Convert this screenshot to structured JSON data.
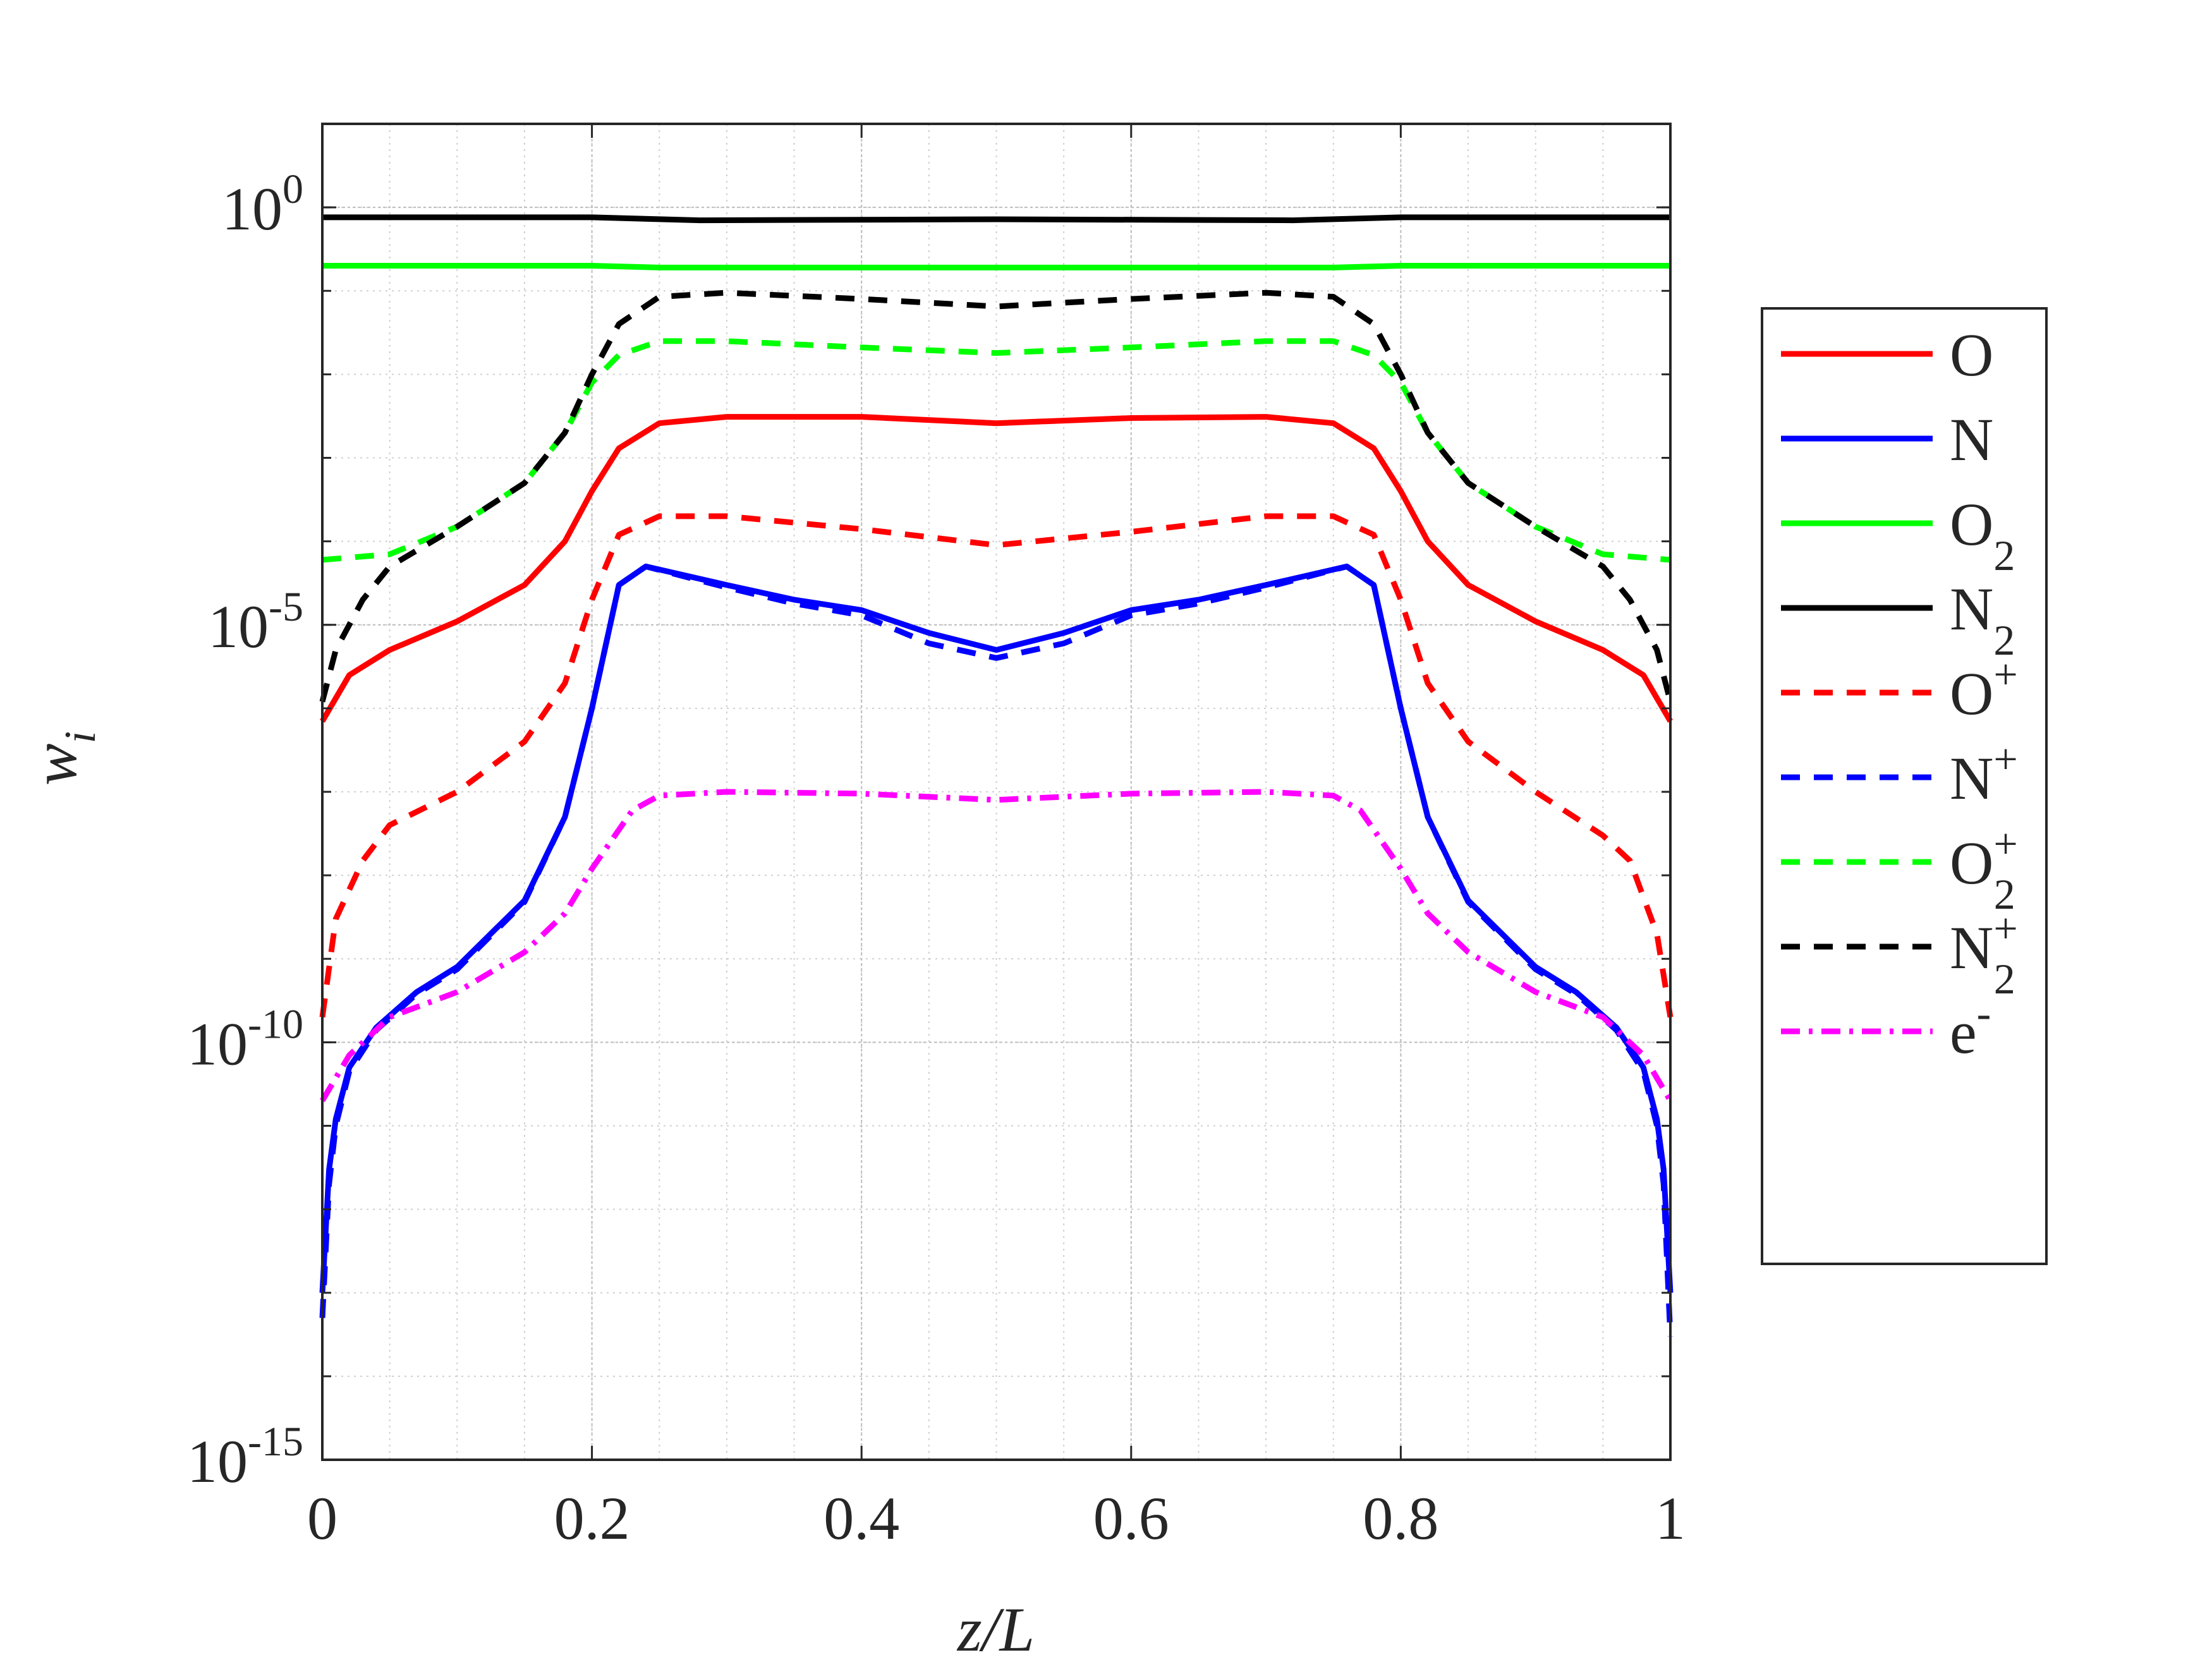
{
  "chart_data": {
    "type": "line",
    "x_axis": {
      "label": "z/L",
      "scale": "linear",
      "range": [
        0,
        1
      ],
      "ticks": [
        {
          "value": 0,
          "label": "0"
        },
        {
          "value": 0.2,
          "label": "0.2"
        },
        {
          "value": 0.4,
          "label": "0.4"
        },
        {
          "value": 0.6,
          "label": "0.6"
        },
        {
          "value": 0.8,
          "label": "0.8"
        },
        {
          "value": 1,
          "label": "1"
        }
      ]
    },
    "y_axis": {
      "label": "w",
      "label_subscript": "i",
      "scale": "log",
      "range": [
        1e-15,
        10
      ],
      "ticks": [
        {
          "value": 1,
          "base": "10",
          "exp": "0"
        },
        {
          "value": 1e-05,
          "base": "10",
          "exp": "-5"
        },
        {
          "value": 1e-10,
          "base": "10",
          "exp": "-10"
        },
        {
          "value": 1e-15,
          "base": "10",
          "exp": "-15"
        }
      ]
    },
    "grid": true,
    "minor_grid": true,
    "legend_position": "outside-right",
    "series": [
      {
        "name": "O",
        "name_sub": "",
        "name_sup": "",
        "color": "#ff0000",
        "style": "solid",
        "points": [
          [
            0,
            7e-07
          ],
          [
            0.02,
            2.5e-06
          ],
          [
            0.05,
            5e-06
          ],
          [
            0.1,
            1.1e-05
          ],
          [
            0.15,
            3e-05
          ],
          [
            0.18,
            0.0001
          ],
          [
            0.2,
            0.0004
          ],
          [
            0.22,
            0.0013
          ],
          [
            0.25,
            0.0026
          ],
          [
            0.3,
            0.0031
          ],
          [
            0.4,
            0.0031
          ],
          [
            0.5,
            0.0026
          ],
          [
            0.6,
            0.003
          ],
          [
            0.7,
            0.0031
          ],
          [
            0.75,
            0.0026
          ],
          [
            0.78,
            0.0013
          ],
          [
            0.8,
            0.0004
          ],
          [
            0.82,
            0.0001
          ],
          [
            0.85,
            3e-05
          ],
          [
            0.9,
            1.1e-05
          ],
          [
            0.95,
            5e-06
          ],
          [
            0.98,
            2.5e-06
          ],
          [
            1,
            7e-07
          ]
        ]
      },
      {
        "name": "N",
        "name_sub": "",
        "name_sup": "",
        "color": "#0000ff",
        "style": "solid",
        "points": [
          [
            0,
            1e-13
          ],
          [
            0.005,
            3e-12
          ],
          [
            0.01,
            1.2e-11
          ],
          [
            0.02,
            5e-11
          ],
          [
            0.04,
            1.5e-10
          ],
          [
            0.07,
            4e-10
          ],
          [
            0.1,
            8e-10
          ],
          [
            0.15,
            5e-09
          ],
          [
            0.18,
            5e-08
          ],
          [
            0.2,
            1e-06
          ],
          [
            0.22,
            3e-05
          ],
          [
            0.24,
            5e-05
          ],
          [
            0.3,
            3e-05
          ],
          [
            0.35,
            2e-05
          ],
          [
            0.4,
            1.5e-05
          ],
          [
            0.45,
            8e-06
          ],
          [
            0.5,
            5e-06
          ],
          [
            0.55,
            8e-06
          ],
          [
            0.6,
            1.5e-05
          ],
          [
            0.65,
            2e-05
          ],
          [
            0.7,
            3e-05
          ],
          [
            0.76,
            5e-05
          ],
          [
            0.78,
            3e-05
          ],
          [
            0.8,
            1e-06
          ],
          [
            0.82,
            5e-08
          ],
          [
            0.85,
            5e-09
          ],
          [
            0.9,
            8e-10
          ],
          [
            0.93,
            4e-10
          ],
          [
            0.96,
            1.5e-10
          ],
          [
            0.98,
            5e-11
          ],
          [
            0.99,
            1.2e-11
          ],
          [
            0.995,
            3e-12
          ],
          [
            1,
            1e-13
          ]
        ]
      },
      {
        "name": "O",
        "name_sub": "2",
        "name_sup": "",
        "color": "#00ff00",
        "style": "solid",
        "points": [
          [
            0,
            0.2
          ],
          [
            0.2,
            0.2
          ],
          [
            0.25,
            0.19
          ],
          [
            0.5,
            0.19
          ],
          [
            0.75,
            0.19
          ],
          [
            0.8,
            0.2
          ],
          [
            1,
            0.2
          ]
        ]
      },
      {
        "name": "N",
        "name_sub": "2",
        "name_sup": "",
        "color": "#000000",
        "style": "solid",
        "points": [
          [
            0,
            0.76
          ],
          [
            0.2,
            0.76
          ],
          [
            0.28,
            0.7
          ],
          [
            0.5,
            0.72
          ],
          [
            0.72,
            0.7
          ],
          [
            0.8,
            0.76
          ],
          [
            1,
            0.76
          ]
        ]
      },
      {
        "name": "O",
        "name_sub": "",
        "name_sup": "+",
        "color": "#ff0000",
        "style": "dashed",
        "points": [
          [
            0,
            2e-10
          ],
          [
            0.01,
            3e-09
          ],
          [
            0.03,
            1.5e-08
          ],
          [
            0.05,
            4e-08
          ],
          [
            0.1,
            1e-07
          ],
          [
            0.15,
            4e-07
          ],
          [
            0.18,
            2e-06
          ],
          [
            0.2,
            2e-05
          ],
          [
            0.22,
            0.00012
          ],
          [
            0.25,
            0.0002
          ],
          [
            0.3,
            0.0002
          ],
          [
            0.4,
            0.00014
          ],
          [
            0.5,
            9e-05
          ],
          [
            0.6,
            0.00013
          ],
          [
            0.7,
            0.0002
          ],
          [
            0.75,
            0.0002
          ],
          [
            0.78,
            0.00012
          ],
          [
            0.8,
            2e-05
          ],
          [
            0.82,
            2e-06
          ],
          [
            0.85,
            4e-07
          ],
          [
            0.9,
            1e-07
          ],
          [
            0.95,
            3e-08
          ],
          [
            0.97,
            1.5e-08
          ],
          [
            0.99,
            2e-09
          ],
          [
            1,
            2e-10
          ]
        ]
      },
      {
        "name": "N",
        "name_sub": "",
        "name_sup": "+",
        "color": "#0000ff",
        "style": "dashed",
        "points": [
          [
            0,
            5e-14
          ],
          [
            0.005,
            2e-12
          ],
          [
            0.01,
            1e-11
          ],
          [
            0.02,
            4.5e-11
          ],
          [
            0.04,
            1.4e-10
          ],
          [
            0.07,
            3.8e-10
          ],
          [
            0.1,
            7.5e-10
          ],
          [
            0.15,
            4.8e-09
          ],
          [
            0.18,
            5e-08
          ],
          [
            0.2,
            1e-06
          ],
          [
            0.22,
            3e-05
          ],
          [
            0.24,
            5e-05
          ],
          [
            0.3,
            2.8e-05
          ],
          [
            0.35,
            1.8e-05
          ],
          [
            0.4,
            1.3e-05
          ],
          [
            0.45,
            6e-06
          ],
          [
            0.5,
            4e-06
          ],
          [
            0.55,
            6e-06
          ],
          [
            0.6,
            1.3e-05
          ],
          [
            0.65,
            1.8e-05
          ],
          [
            0.7,
            2.8e-05
          ],
          [
            0.76,
            5e-05
          ],
          [
            0.78,
            3e-05
          ],
          [
            0.8,
            1e-06
          ],
          [
            0.82,
            5e-08
          ],
          [
            0.85,
            4.8e-09
          ],
          [
            0.9,
            7.5e-10
          ],
          [
            0.93,
            3.8e-10
          ],
          [
            0.96,
            1.4e-10
          ],
          [
            0.98,
            4.5e-11
          ],
          [
            0.99,
            1e-11
          ],
          [
            0.995,
            2e-12
          ],
          [
            1,
            3e-14
          ]
        ]
      },
      {
        "name": "O",
        "name_sub": "2",
        "name_sup": "+",
        "color": "#00ff00",
        "style": "dashed",
        "points": [
          [
            0,
            6e-05
          ],
          [
            0.05,
            7e-05
          ],
          [
            0.1,
            0.00015
          ],
          [
            0.15,
            0.0005
          ],
          [
            0.18,
            0.002
          ],
          [
            0.2,
            0.008
          ],
          [
            0.22,
            0.017
          ],
          [
            0.25,
            0.025
          ],
          [
            0.3,
            0.025
          ],
          [
            0.4,
            0.021
          ],
          [
            0.5,
            0.018
          ],
          [
            0.6,
            0.021
          ],
          [
            0.7,
            0.025
          ],
          [
            0.75,
            0.025
          ],
          [
            0.78,
            0.017
          ],
          [
            0.8,
            0.008
          ],
          [
            0.82,
            0.002
          ],
          [
            0.85,
            0.0005
          ],
          [
            0.9,
            0.00015
          ],
          [
            0.95,
            7e-05
          ],
          [
            1,
            6e-05
          ]
        ]
      },
      {
        "name": "N",
        "name_sub": "2",
        "name_sup": "+",
        "color": "#000000",
        "style": "dashed",
        "points": [
          [
            0,
            1.2e-06
          ],
          [
            0.01,
            5e-06
          ],
          [
            0.03,
            2e-05
          ],
          [
            0.05,
            5e-05
          ],
          [
            0.1,
            0.00015
          ],
          [
            0.15,
            0.0005
          ],
          [
            0.18,
            0.002
          ],
          [
            0.2,
            0.01
          ],
          [
            0.22,
            0.04
          ],
          [
            0.25,
            0.085
          ],
          [
            0.3,
            0.095
          ],
          [
            0.4,
            0.08
          ],
          [
            0.5,
            0.065
          ],
          [
            0.6,
            0.08
          ],
          [
            0.7,
            0.095
          ],
          [
            0.75,
            0.085
          ],
          [
            0.78,
            0.04
          ],
          [
            0.8,
            0.01
          ],
          [
            0.82,
            0.002
          ],
          [
            0.85,
            0.0005
          ],
          [
            0.9,
            0.00015
          ],
          [
            0.95,
            5e-05
          ],
          [
            0.97,
            2e-05
          ],
          [
            0.99,
            5e-06
          ],
          [
            1,
            1.2e-06
          ]
        ]
      },
      {
        "name": "e",
        "name_sub": "",
        "name_sup": "-",
        "color": "#ff00ff",
        "style": "dashdot",
        "points": [
          [
            0,
            2e-11
          ],
          [
            0.02,
            7e-11
          ],
          [
            0.05,
            2e-10
          ],
          [
            0.1,
            4e-10
          ],
          [
            0.15,
            1.2e-09
          ],
          [
            0.18,
            3.5e-09
          ],
          [
            0.2,
            1.2e-08
          ],
          [
            0.23,
            6e-08
          ],
          [
            0.25,
            9e-08
          ],
          [
            0.3,
            1e-07
          ],
          [
            0.4,
            9.5e-08
          ],
          [
            0.5,
            8e-08
          ],
          [
            0.6,
            9.5e-08
          ],
          [
            0.7,
            1e-07
          ],
          [
            0.75,
            9e-08
          ],
          [
            0.77,
            6e-08
          ],
          [
            0.8,
            1.2e-08
          ],
          [
            0.82,
            3.5e-09
          ],
          [
            0.85,
            1.2e-09
          ],
          [
            0.9,
            4e-10
          ],
          [
            0.95,
            2e-10
          ],
          [
            0.98,
            7e-11
          ],
          [
            1,
            2e-11
          ]
        ]
      }
    ]
  }
}
